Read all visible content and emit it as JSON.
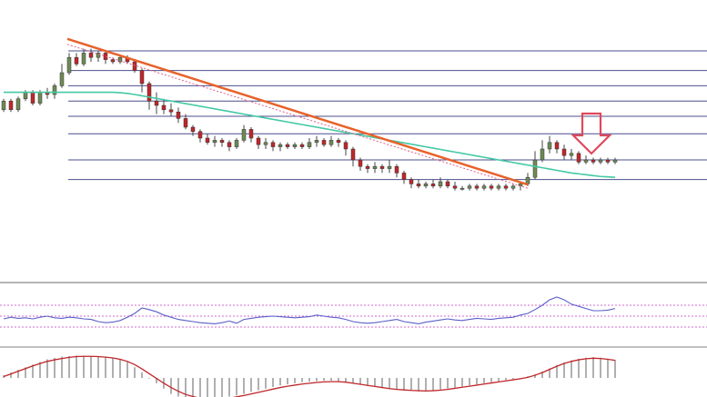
{
  "colors": {
    "background": "#ffffff",
    "bull_candle": "#6e8a55",
    "bear_candle": "#c0262a",
    "fib_line": "#4b4f8c",
    "separator": "#9b9b9b",
    "trendline": "#e8622b",
    "dotted_trend": "#e0608c",
    "moving_average": "#44c9a5",
    "arrow": "#e0485a",
    "rsi_line": "#5a5fc8",
    "rsi_band": "#c23ac4",
    "macd_hist": "#b0b0b0",
    "macd_signal": "#c0262a"
  },
  "icons": {
    "annotation": "down-arrow-icon"
  },
  "chart_data": [
    {
      "type": "candlestick",
      "title": "",
      "xlabel": "",
      "ylabel": "",
      "grid": false,
      "ylim": [
        0,
        100
      ],
      "candles": [
        [
          58,
          62,
          57,
          63
        ],
        [
          62,
          58,
          57,
          63
        ],
        [
          58,
          63,
          57,
          64
        ],
        [
          63,
          66,
          62,
          67
        ],
        [
          66,
          61,
          60,
          67
        ],
        [
          61,
          66,
          60,
          67
        ],
        [
          66,
          65,
          63,
          68
        ],
        [
          65,
          69,
          63,
          70
        ],
        [
          69,
          75,
          68,
          79
        ],
        [
          75,
          82,
          74,
          84
        ],
        [
          82,
          79,
          78,
          84
        ],
        [
          79,
          84,
          78,
          86
        ],
        [
          84,
          82,
          80,
          86
        ],
        [
          82,
          84,
          80,
          85
        ],
        [
          84,
          81,
          79,
          85
        ],
        [
          81,
          80,
          79,
          82
        ],
        [
          80,
          82,
          79,
          83
        ],
        [
          82,
          80,
          79,
          83
        ],
        [
          80,
          76,
          75,
          81
        ],
        [
          76,
          70,
          66,
          77
        ],
        [
          70,
          62,
          58,
          71
        ],
        [
          62,
          60,
          56,
          66
        ],
        [
          60,
          58,
          56,
          63
        ],
        [
          58,
          57,
          55,
          61
        ],
        [
          57,
          54,
          52,
          59
        ],
        [
          54,
          50,
          49,
          56
        ],
        [
          50,
          48,
          46,
          51
        ],
        [
          48,
          45,
          43,
          49
        ],
        [
          45,
          43,
          42,
          47
        ],
        [
          43,
          44,
          41,
          46
        ],
        [
          44,
          43,
          41,
          45
        ],
        [
          43,
          41,
          39,
          44
        ],
        [
          41,
          44,
          40,
          45
        ],
        [
          44,
          49,
          43,
          51
        ],
        [
          49,
          45,
          43,
          50
        ],
        [
          45,
          42,
          40,
          46
        ],
        [
          42,
          43,
          40,
          45
        ],
        [
          43,
          41,
          39,
          44
        ],
        [
          41,
          42,
          39,
          43
        ],
        [
          42,
          41,
          40,
          43
        ],
        [
          41,
          42,
          40,
          43
        ],
        [
          42,
          41,
          40,
          43
        ],
        [
          41,
          43,
          40,
          45
        ],
        [
          43,
          44,
          41,
          46
        ],
        [
          44,
          42,
          41,
          45
        ],
        [
          42,
          44,
          41,
          46
        ],
        [
          44,
          43,
          41,
          45
        ],
        [
          43,
          40,
          37,
          44
        ],
        [
          40,
          35,
          32,
          41
        ],
        [
          35,
          32,
          30,
          36
        ],
        [
          32,
          31,
          29,
          33
        ],
        [
          31,
          32,
          29,
          34
        ],
        [
          32,
          31,
          29,
          33
        ],
        [
          31,
          32,
          29,
          35
        ],
        [
          32,
          29,
          27,
          33
        ],
        [
          29,
          26,
          24,
          30
        ],
        [
          26,
          24,
          22,
          27
        ],
        [
          24,
          23,
          22,
          26
        ],
        [
          23,
          24,
          22,
          25
        ],
        [
          24,
          23,
          22,
          26
        ],
        [
          23,
          25,
          22,
          27
        ],
        [
          25,
          23,
          22,
          26
        ],
        [
          23,
          22,
          21,
          25
        ],
        [
          22,
          22,
          21,
          23
        ],
        [
          22,
          23,
          21,
          24
        ],
        [
          23,
          22,
          21,
          24
        ],
        [
          22,
          23,
          21,
          24
        ],
        [
          23,
          22,
          21,
          24
        ],
        [
          22,
          23,
          21,
          24
        ],
        [
          23,
          22,
          21,
          24
        ],
        [
          22,
          23,
          21,
          24
        ],
        [
          23,
          24,
          21,
          25
        ],
        [
          24,
          27,
          23,
          29
        ],
        [
          27,
          35,
          26,
          39
        ],
        [
          35,
          40,
          34,
          44
        ],
        [
          40,
          43,
          38,
          46
        ],
        [
          43,
          40,
          38,
          44
        ],
        [
          40,
          37,
          35,
          42
        ],
        [
          37,
          38,
          35,
          40
        ],
        [
          38,
          34,
          33,
          39
        ],
        [
          34,
          35,
          33,
          37
        ],
        [
          35,
          34,
          33,
          36
        ],
        [
          34,
          35,
          33,
          36
        ],
        [
          35,
          34,
          33,
          36
        ],
        [
          34,
          35,
          33,
          36
        ]
      ],
      "moving_average": [
        66,
        66,
        66,
        66,
        66,
        66,
        66,
        66,
        66,
        66,
        66,
        66,
        66,
        66,
        66,
        66,
        65.8,
        65.5,
        65,
        64.4,
        63.8,
        63.2,
        62.6,
        62,
        61.4,
        60.8,
        60.2,
        59.6,
        59,
        58.4,
        57.8,
        57.2,
        56.6,
        56,
        55.4,
        54.8,
        54.2,
        53.6,
        53,
        52.4,
        51.8,
        51.2,
        50.6,
        50,
        49.4,
        48.8,
        48.2,
        47.6,
        47,
        46.4,
        45.8,
        45.2,
        44.6,
        44,
        43.4,
        42.8,
        42.2,
        41.6,
        41,
        40.4,
        39.8,
        39.2,
        38.6,
        38,
        37.4,
        36.8,
        36.2,
        35.6,
        35,
        34.4,
        33.8,
        33.2,
        32.6,
        32,
        31.4,
        30.8,
        30.2,
        29.6,
        29,
        28.6,
        28.2,
        27.8,
        27.4,
        27.2,
        27
      ],
      "fib_levels": [
        26,
        35,
        47,
        55,
        62,
        69,
        76,
        85
      ],
      "trendline": {
        "from": [
          0,
          88
        ],
        "to": [
          72,
          22
        ]
      },
      "dotted_trendline": {
        "from": [
          0,
          88
        ],
        "to": [
          72,
          22
        ]
      },
      "annotation": {
        "type": "arrow-down",
        "at_candle": 81
      }
    },
    {
      "type": "line",
      "title": "",
      "ylabel": "",
      "ylim": [
        0,
        100
      ],
      "bands": [
        30,
        50,
        70
      ],
      "values": [
        45,
        48,
        46,
        47,
        45,
        48,
        50,
        47,
        46,
        48,
        47,
        45,
        44,
        40,
        38,
        39,
        42,
        48,
        55,
        65,
        62,
        58,
        52,
        48,
        44,
        42,
        40,
        38,
        37,
        36,
        38,
        41,
        37,
        44,
        46,
        48,
        49,
        50,
        49,
        48,
        47,
        48,
        49,
        52,
        50,
        48,
        47,
        44,
        40,
        38,
        37,
        38,
        40,
        42,
        44,
        40,
        38,
        36,
        39,
        41,
        43,
        45,
        43,
        42,
        44,
        46,
        45,
        44,
        46,
        47,
        48,
        52,
        55,
        62,
        70,
        80,
        85,
        80,
        72,
        68,
        64,
        60,
        60,
        61,
        64
      ]
    },
    {
      "type": "bar",
      "title": "",
      "ylabel": "",
      "ylim": [
        -12,
        12
      ],
      "histogram": [
        1,
        2,
        3,
        4,
        5,
        6,
        7,
        7.5,
        8,
        8.2,
        8.4,
        8.3,
        8.2,
        8,
        7.8,
        7.5,
        7,
        6,
        4,
        2,
        0,
        -2,
        -4,
        -6,
        -7,
        -8,
        -8.2,
        -8.3,
        -8.4,
        -8,
        -7.6,
        -7,
        -6.5,
        -6,
        -5.2,
        -4.6,
        -4,
        -3.4,
        -2.8,
        -2.4,
        -2,
        -1.6,
        -1.4,
        -1.2,
        -1,
        -1,
        -1.2,
        -1.6,
        -2,
        -2.6,
        -3,
        -3.4,
        -3.8,
        -4.2,
        -4.4,
        -4.6,
        -4.8,
        -5,
        -5,
        -4.8,
        -4.4,
        -4,
        -3.6,
        -3.2,
        -2.8,
        -2.4,
        -2,
        -1.6,
        -1.2,
        -0.8,
        -0.4,
        0,
        0.6,
        1.4,
        2.4,
        3.6,
        4.8,
        5.8,
        6.6,
        7.2,
        7.6,
        7.8,
        7.6,
        7.2,
        6.8
      ],
      "signal": [
        0.5,
        1.5,
        2.5,
        3.5,
        4.5,
        5.4,
        6.2,
        6.8,
        7.3,
        7.7,
        8,
        8.1,
        8.1,
        8,
        7.8,
        7.5,
        7,
        6.2,
        5,
        3.4,
        1.6,
        -0.2,
        -2,
        -3.6,
        -5,
        -6.2,
        -7,
        -7.6,
        -8,
        -8.1,
        -8,
        -7.6,
        -7.1,
        -6.6,
        -6,
        -5.4,
        -4.8,
        -4.2,
        -3.6,
        -3.1,
        -2.7,
        -2.3,
        -2,
        -1.7,
        -1.5,
        -1.4,
        -1.4,
        -1.6,
        -2,
        -2.4,
        -2.8,
        -3.2,
        -3.6,
        -4,
        -4.3,
        -4.5,
        -4.7,
        -4.8,
        -4.9,
        -4.8,
        -4.6,
        -4.3,
        -3.9,
        -3.5,
        -3.1,
        -2.7,
        -2.3,
        -1.9,
        -1.5,
        -1.1,
        -0.7,
        -0.3,
        0.2,
        1,
        2,
        3.2,
        4.4,
        5.4,
        6.2,
        6.8,
        7.2,
        7.4,
        7.3,
        7,
        6.6
      ]
    }
  ]
}
